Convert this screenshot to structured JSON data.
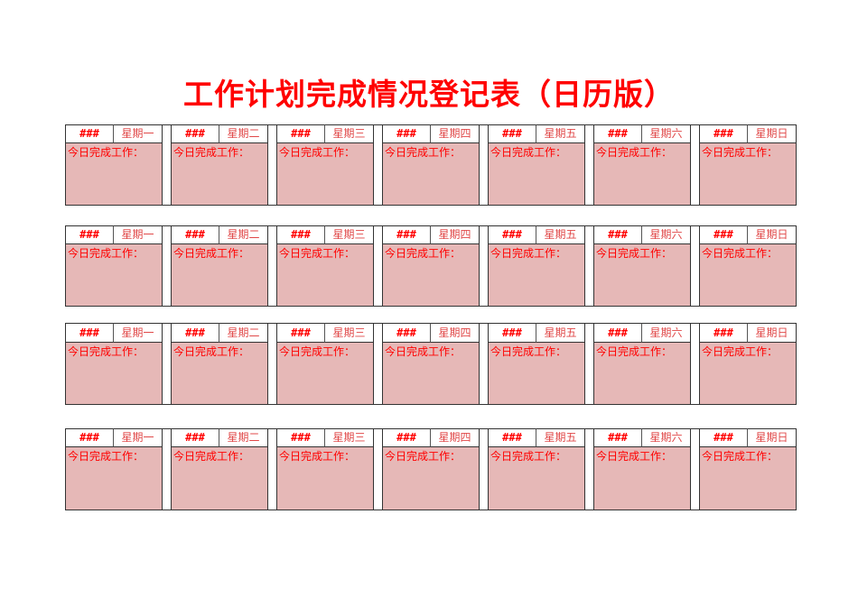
{
  "title": "工作计划完成情况登记表（日历版）",
  "colors": {
    "title": "#ff0000",
    "cell_fill": "#e6b8b7",
    "text": "#ff0000"
  },
  "weeks": [
    {
      "days": [
        {
          "date": "###",
          "weekday": "星期一",
          "label": "今日完成工作："
        },
        {
          "date": "###",
          "weekday": "星期二",
          "label": "今日完成工作："
        },
        {
          "date": "###",
          "weekday": "星期三",
          "label": "今日完成工作："
        },
        {
          "date": "###",
          "weekday": "星期四",
          "label": "今日完成工作："
        },
        {
          "date": "###",
          "weekday": "星期五",
          "label": "今日完成工作："
        },
        {
          "date": "###",
          "weekday": "星期六",
          "label": "今日完成工作："
        },
        {
          "date": "###",
          "weekday": "星期日",
          "label": "今日完成工作："
        }
      ]
    },
    {
      "days": [
        {
          "date": "###",
          "weekday": "星期一",
          "label": "今日完成工作："
        },
        {
          "date": "###",
          "weekday": "星期二",
          "label": "今日完成工作："
        },
        {
          "date": "###",
          "weekday": "星期三",
          "label": "今日完成工作："
        },
        {
          "date": "###",
          "weekday": "星期四",
          "label": "今日完成工作："
        },
        {
          "date": "###",
          "weekday": "星期五",
          "label": "今日完成工作："
        },
        {
          "date": "###",
          "weekday": "星期六",
          "label": "今日完成工作："
        },
        {
          "date": "###",
          "weekday": "星期日",
          "label": "今日完成工作："
        }
      ]
    },
    {
      "days": [
        {
          "date": "###",
          "weekday": "星期一",
          "label": "今日完成工作："
        },
        {
          "date": "###",
          "weekday": "星期二",
          "label": "今日完成工作："
        },
        {
          "date": "###",
          "weekday": "星期三",
          "label": "今日完成工作："
        },
        {
          "date": "###",
          "weekday": "星期四",
          "label": "今日完成工作："
        },
        {
          "date": "###",
          "weekday": "星期五",
          "label": "今日完成工作："
        },
        {
          "date": "###",
          "weekday": "星期六",
          "label": "今日完成工作："
        },
        {
          "date": "###",
          "weekday": "星期日",
          "label": "今日完成工作："
        }
      ]
    },
    {
      "days": [
        {
          "date": "###",
          "weekday": "星期一",
          "label": "今日完成工作："
        },
        {
          "date": "###",
          "weekday": "星期二",
          "label": "今日完成工作："
        },
        {
          "date": "###",
          "weekday": "星期三",
          "label": "今日完成工作："
        },
        {
          "date": "###",
          "weekday": "星期四",
          "label": "今日完成工作："
        },
        {
          "date": "###",
          "weekday": "星期五",
          "label": "今日完成工作："
        },
        {
          "date": "###",
          "weekday": "星期六",
          "label": "今日完成工作："
        },
        {
          "date": "###",
          "weekday": "星期日",
          "label": "今日完成工作："
        }
      ]
    }
  ]
}
